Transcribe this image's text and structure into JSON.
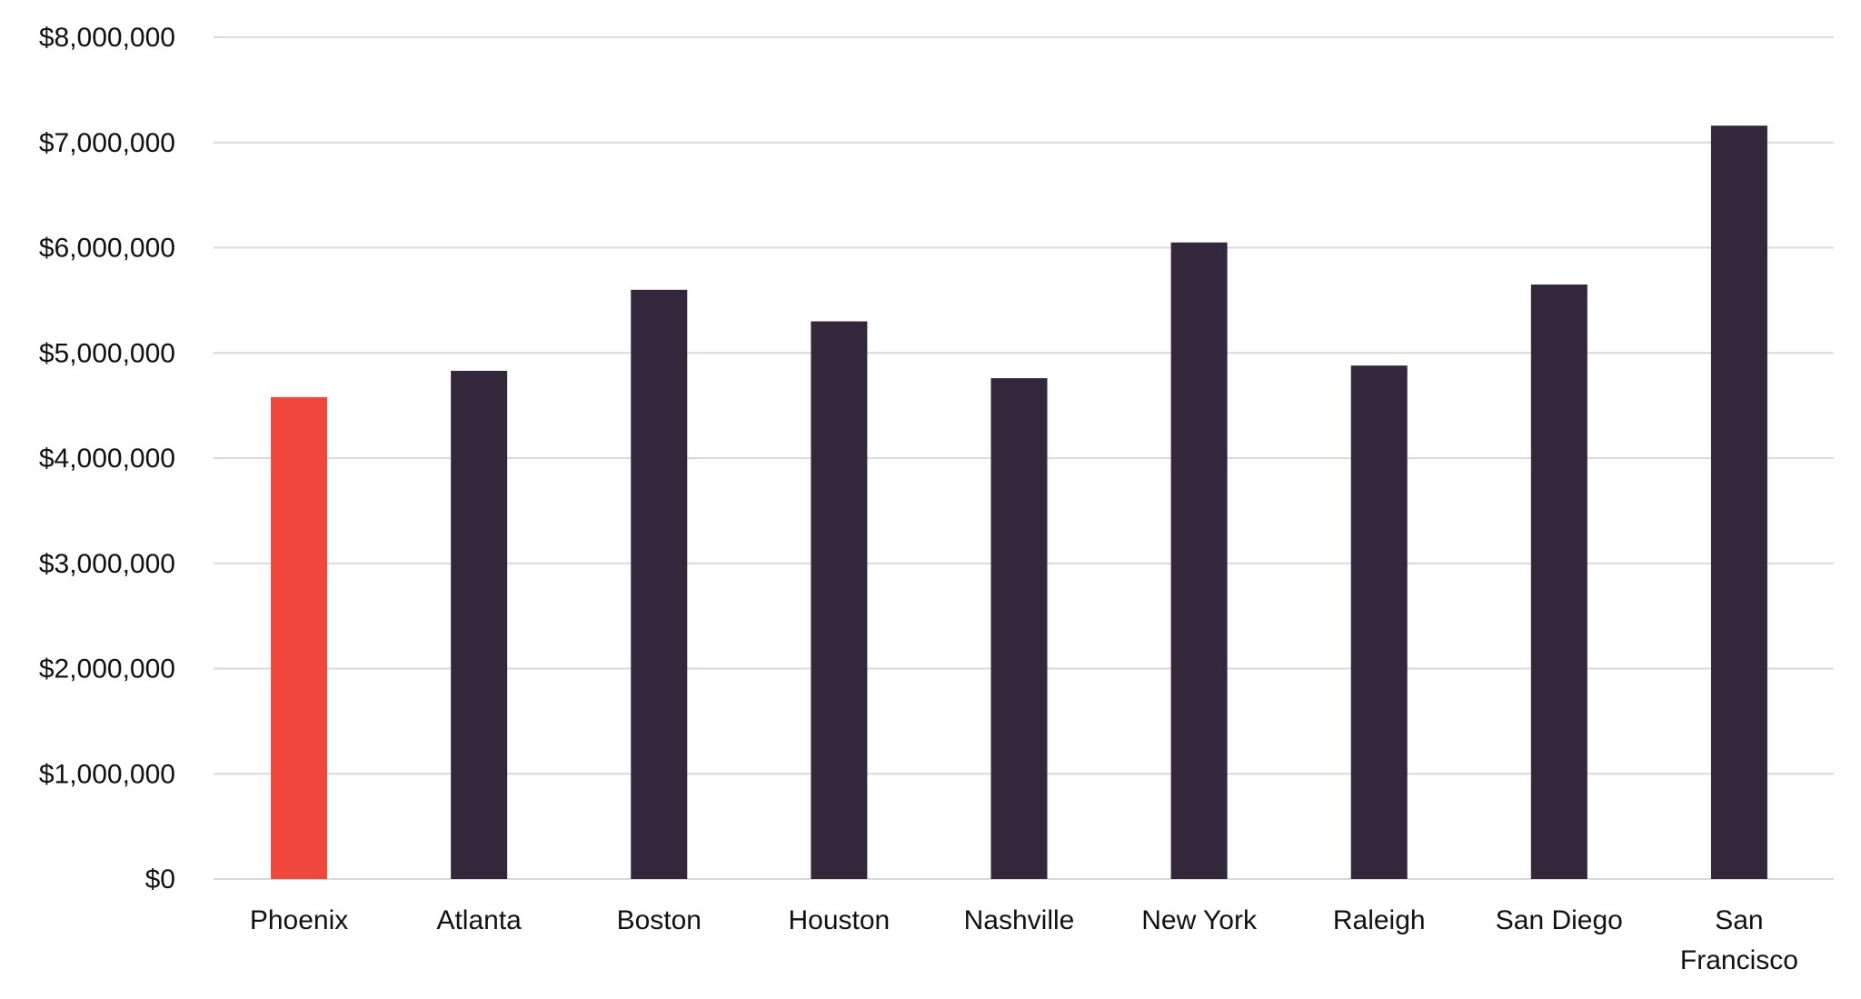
{
  "chart_data": {
    "type": "bar",
    "categories": [
      "Phoenix",
      "Atlanta",
      "Boston",
      "Houston",
      "Nashville",
      "New York",
      "Raleigh",
      "San Diego",
      "San Francisco"
    ],
    "category_labels": [
      [
        "Phoenix"
      ],
      [
        "Atlanta"
      ],
      [
        "Boston"
      ],
      [
        "Houston"
      ],
      [
        "Nashville"
      ],
      [
        "New York"
      ],
      [
        "Raleigh"
      ],
      [
        "San Diego"
      ],
      [
        "San",
        "Francisco"
      ]
    ],
    "values": [
      4580000,
      4830000,
      5600000,
      5300000,
      4760000,
      6050000,
      4880000,
      5650000,
      7160000
    ],
    "highlight_category": "Phoenix",
    "colors": {
      "highlight": "#f0473c",
      "default": "#33283b",
      "grid": "#d9d9d9"
    },
    "ylim": [
      0,
      8000000
    ],
    "yticks": [
      0,
      1000000,
      2000000,
      3000000,
      4000000,
      5000000,
      6000000,
      7000000,
      8000000
    ],
    "ytick_labels": [
      "$0",
      "$1,000,000",
      "$2,000,000",
      "$3,000,000",
      "$4,000,000",
      "$5,000,000",
      "$6,000,000",
      "$7,000,000",
      "$8,000,000"
    ],
    "grid": true,
    "legend": false
  }
}
